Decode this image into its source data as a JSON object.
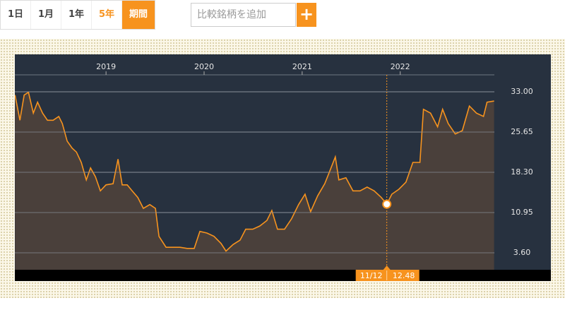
{
  "toolbar": {
    "ranges": [
      "1日",
      "1月",
      "1年",
      "5年",
      "期間"
    ],
    "search_placeholder": "比較銘柄を追加",
    "add_button": "+"
  },
  "chart_data": {
    "type": "line",
    "x": [
      2018.072,
      2018.122,
      2018.165,
      2018.209,
      2018.259,
      2018.302,
      2018.353,
      2018.403,
      2018.46,
      2018.518,
      2018.554,
      2018.604,
      2018.655,
      2018.698,
      2018.748,
      2018.799,
      2018.842,
      2018.892,
      2018.942,
      2019.0,
      2019.072,
      2019.122,
      2019.165,
      2019.216,
      2019.266,
      2019.324,
      2019.381,
      2019.446,
      2019.504,
      2019.54,
      2019.612,
      2019.683,
      2019.755,
      2019.827,
      2019.899,
      2019.957,
      2020.029,
      2020.101,
      2020.173,
      2020.223,
      2020.295,
      2020.367,
      2020.424,
      2020.496,
      2020.568,
      2020.64,
      2020.691,
      2020.748,
      2020.82,
      2020.892,
      2020.964,
      2021.029,
      2021.086,
      2021.158,
      2021.23,
      2021.288,
      2021.338,
      2021.374,
      2021.446,
      2021.518,
      2021.59,
      2021.662,
      2021.734,
      2021.806,
      2021.863,
      2021.914,
      2021.986,
      2022.058,
      2022.129,
      2022.201,
      2022.237,
      2022.309,
      2022.381,
      2022.432,
      2022.489,
      2022.561,
      2022.633,
      2022.705,
      2022.777,
      2022.849,
      2022.885,
      2022.957
    ],
    "series": [
      {
        "color": "#f7931e",
        "values": [
          32.4,
          27.8,
          32.4,
          32.9,
          29.1,
          31.1,
          29.1,
          27.8,
          27.8,
          28.5,
          27.2,
          24.0,
          22.7,
          22.0,
          20.1,
          16.9,
          19.1,
          17.5,
          14.9,
          16.0,
          16.2,
          20.7,
          16.0,
          16.0,
          14.9,
          13.7,
          11.7,
          12.4,
          11.7,
          6.6,
          4.6,
          4.6,
          4.6,
          4.4,
          4.4,
          7.5,
          7.2,
          6.6,
          5.3,
          3.9,
          5.1,
          5.9,
          7.9,
          7.9,
          8.5,
          9.5,
          11.3,
          7.9,
          7.9,
          9.8,
          12.4,
          14.3,
          11.1,
          14.0,
          16.2,
          18.8,
          21.1,
          16.9,
          17.3,
          14.9,
          14.9,
          15.6,
          14.9,
          13.7,
          12.48,
          14.3,
          15.2,
          16.5,
          20.1,
          20.1,
          29.8,
          29.1,
          26.6,
          29.8,
          27.2,
          25.3,
          25.9,
          30.4,
          29.1,
          28.5,
          31.1,
          31.3
        ]
      }
    ],
    "xlim": [
      2018.07,
      2022.96
    ],
    "xticks": [
      2019,
      2020,
      2021,
      2022
    ],
    "ylim": [
      0.5,
      39.83
    ],
    "yticks": [
      {
        "value": 33,
        "label": "33.00"
      },
      25.65,
      {
        "value": 18.3,
        "label": "18.30"
      },
      10.95,
      {
        "value": 3.6,
        "label": "3.60"
      }
    ],
    "grid": true,
    "marker": {
      "x": 2021.863,
      "label": "11/12",
      "value": 12.48
    }
  }
}
